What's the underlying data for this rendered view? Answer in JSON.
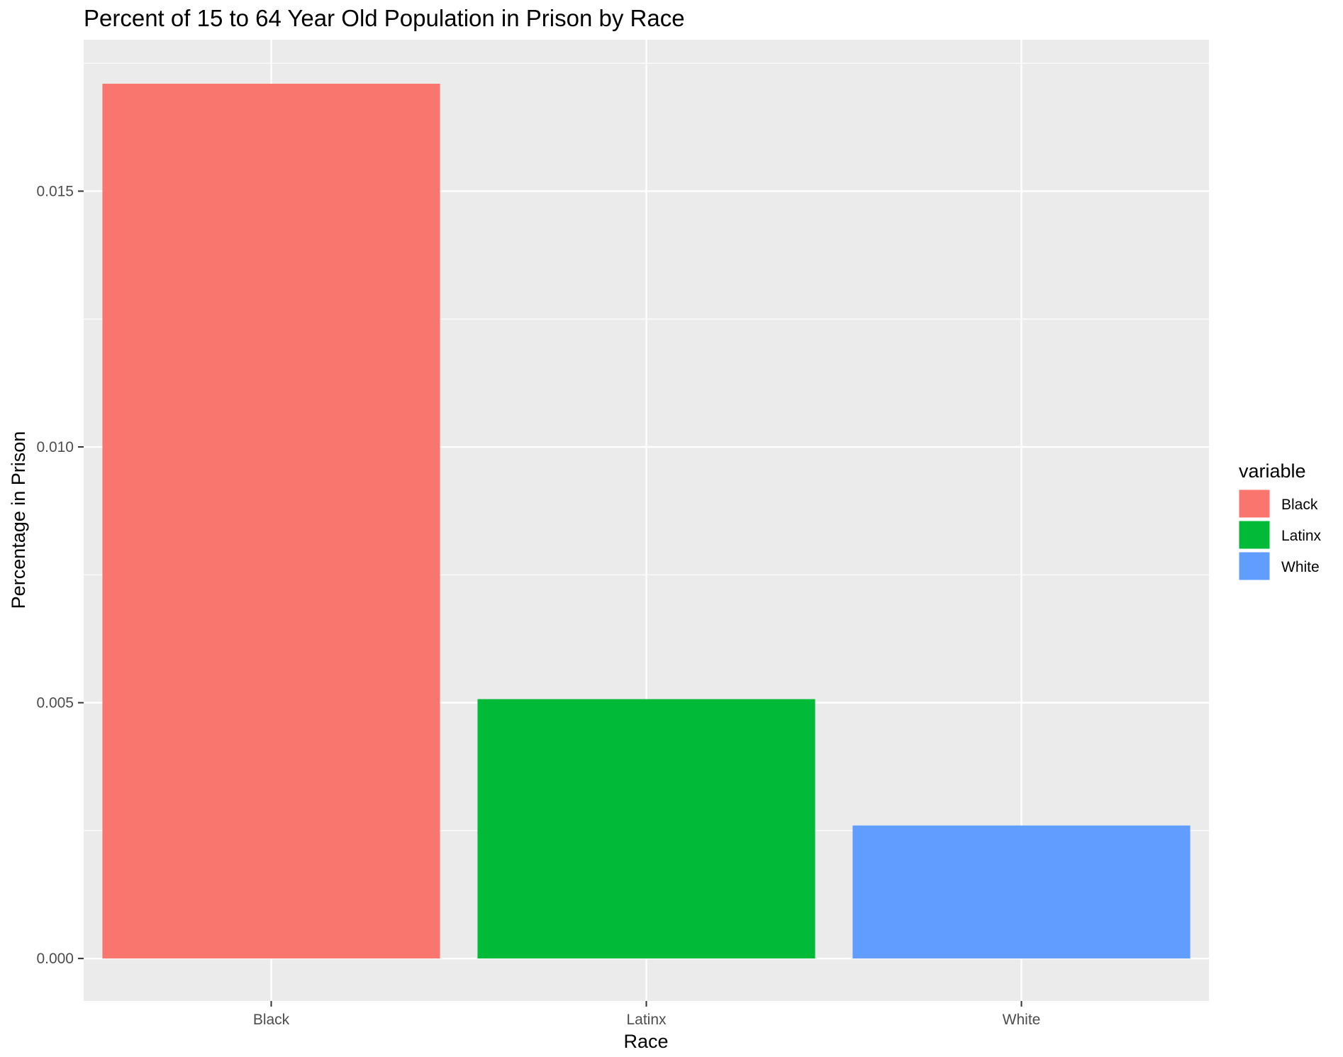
{
  "chart_data": {
    "type": "bar",
    "title": "Percent of 15 to 64 Year Old Population in Prison by Race",
    "xlabel": "Race",
    "ylabel": "Percentage in Prison",
    "categories": [
      "Black",
      "Latinx",
      "White"
    ],
    "values": [
      0.0171,
      0.00507,
      0.0026
    ],
    "colors": [
      "#F8766D",
      "#00BA38",
      "#619CFF"
    ],
    "ylim": [
      -0.00083,
      0.01796
    ],
    "y_ticks": [
      0.0,
      0.005,
      0.01,
      0.015
    ],
    "y_tick_labels": [
      "0.000",
      "0.005",
      "0.010",
      "0.015"
    ],
    "grid": true,
    "panel_background": "#EBEBEB",
    "legend": {
      "title": "variable",
      "position": "right",
      "entries": [
        {
          "label": "Black",
          "color": "#F8766D"
        },
        {
          "label": "Latinx",
          "color": "#00BA38"
        },
        {
          "label": "White",
          "color": "#619CFF"
        }
      ]
    }
  }
}
